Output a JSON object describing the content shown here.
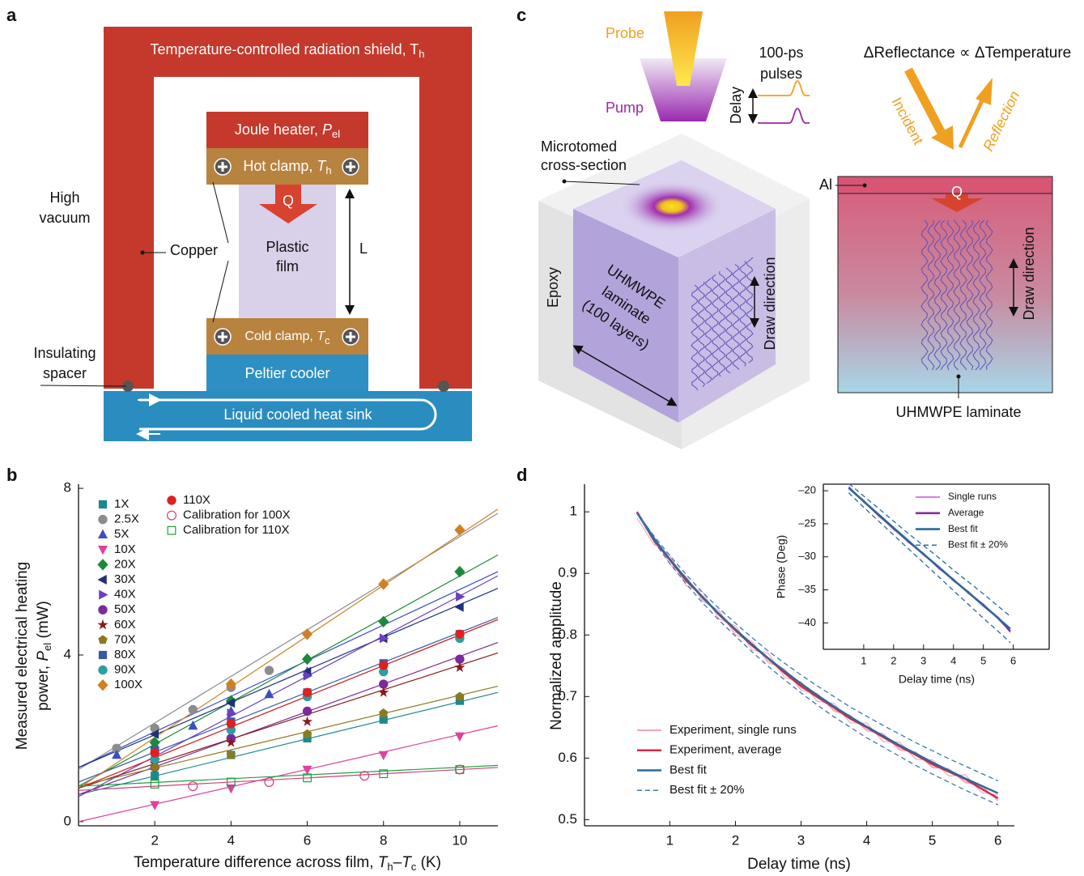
{
  "panel_labels": [
    "a",
    "b",
    "c",
    "d"
  ],
  "diagram_a": {
    "shield": [
      "Temperature-controlled radiation shield, T",
      "h"
    ],
    "heater": [
      "Joule heater, ",
      "P",
      "el"
    ],
    "hot_clamp": [
      "Hot clamp, ",
      "T",
      "h"
    ],
    "q": "Q",
    "film": [
      "Plastic",
      "film"
    ],
    "length": "L",
    "cold_clamp": [
      "Cold clamp, ",
      "T",
      "c"
    ],
    "peltier": "Peltier cooler",
    "heat_sink": "Liquid cooled heat sink",
    "vacuum": [
      "High",
      "vacuum"
    ],
    "copper": "Copper",
    "spacer": [
      "Insulating",
      "spacer"
    ]
  },
  "diagram_c": {
    "probe": "Probe",
    "pump": "Pump",
    "pulses": [
      "100-ps",
      "pulses"
    ],
    "delay": "Delay",
    "cross_section": [
      "Microtomed",
      "cross-section"
    ],
    "epoxy": "Epoxy",
    "laminate": [
      "UHMWPE",
      "laminate",
      "(100 layers)"
    ],
    "draw_direction": "Draw direction",
    "relation": "ΔReflectance ∝  ΔTemperature",
    "incident": "Incident",
    "reflection": "Reflection",
    "al": "Al",
    "q": "Q",
    "draw_direction_2": "Draw direction",
    "laminate_2": "UHMWPE laminate"
  },
  "chart_data": [
    {
      "type": "scatter",
      "xlabel": [
        "Temperature difference across film, ",
        "T",
        "h",
        "–",
        "T",
        "c",
        " (K)"
      ],
      "ylabel": [
        "Measured electrical heating",
        "power, ",
        "P",
        "el",
        " (mW)"
      ],
      "xlim": [
        0,
        11
      ],
      "ylim": [
        -0.1,
        8.1
      ],
      "xticks": [
        2,
        4,
        6,
        8,
        10
      ],
      "yticks": [
        0,
        4,
        8
      ],
      "legend": "upper left",
      "series": [
        {
          "name": "1X",
          "color": "#1b8a8c",
          "marker": "square",
          "x": [
            2,
            4,
            6,
            8,
            10
          ],
          "values": [
            1.1,
            1.6,
            2.0,
            2.45,
            2.9
          ],
          "fit": [
            0.65,
            3.1
          ]
        },
        {
          "name": "2.5X",
          "color": "#8c8c8c",
          "marker": "circle",
          "x": [
            1,
            2,
            3,
            4,
            5
          ],
          "values": [
            1.76,
            2.24,
            2.69,
            3.22,
            3.63
          ],
          "fit": [
            1.25,
            7.4
          ]
        },
        {
          "name": "5X",
          "color": "#3b4fc4",
          "marker": "triangle-up",
          "x": [
            1,
            2,
            3,
            4,
            5,
            6
          ],
          "values": [
            1.6,
            1.85,
            2.3,
            2.65,
            3.06,
            3.6
          ],
          "fit": [
            1.3,
            6.0
          ]
        },
        {
          "name": "10X",
          "color": "#e040a0",
          "marker": "triangle-down",
          "x": [
            2,
            4,
            6,
            8,
            10
          ],
          "values": [
            0.4,
            0.8,
            1.25,
            1.6,
            2.05
          ],
          "fit": [
            0,
            2.3
          ]
        },
        {
          "name": "20X",
          "color": "#1b8a3a",
          "marker": "diamond",
          "x": [
            2,
            4,
            6,
            8,
            10
          ],
          "values": [
            1.9,
            2.9,
            3.9,
            4.8,
            6.0
          ],
          "fit": [
            0.85,
            6.4
          ]
        },
        {
          "name": "30X",
          "color": "#20307a",
          "marker": "triangle-left",
          "x": [
            2,
            4,
            6,
            8,
            10
          ],
          "values": [
            2.1,
            2.85,
            3.6,
            4.4,
            5.15
          ],
          "fit": [
            1.3,
            5.6
          ]
        },
        {
          "name": "40X",
          "color": "#6a40c0",
          "marker": "triangle-right",
          "x": [
            2,
            4,
            6,
            8,
            10
          ],
          "values": [
            1.5,
            2.6,
            3.5,
            4.4,
            5.4
          ],
          "fit": [
            0.6,
            5.9
          ]
        },
        {
          "name": "50X",
          "color": "#7a2a9a",
          "marker": "circle",
          "x": [
            2,
            4,
            6,
            8,
            10
          ],
          "values": [
            1.3,
            2.0,
            2.65,
            3.3,
            3.9
          ],
          "fit": [
            0.65,
            4.3
          ]
        },
        {
          "name": "60X",
          "color": "#8a1a1a",
          "marker": "star",
          "x": [
            2,
            4,
            6,
            8,
            10
          ],
          "values": [
            1.4,
            1.9,
            2.4,
            3.1,
            3.7
          ],
          "fit": [
            0.8,
            4.05
          ]
        },
        {
          "name": "70X",
          "color": "#8a7a20",
          "marker": "pentagon",
          "x": [
            2,
            4,
            6,
            8,
            10
          ],
          "values": [
            1.3,
            1.6,
            2.1,
            2.6,
            3.0
          ],
          "fit": [
            0.85,
            3.25
          ]
        },
        {
          "name": "80X",
          "color": "#3a5aa0",
          "marker": "square",
          "x": [
            2,
            4,
            6,
            8,
            10
          ],
          "values": [
            1.7,
            2.4,
            3.1,
            3.8,
            4.5
          ],
          "fit": [
            0.95,
            4.9
          ]
        },
        {
          "name": "90X",
          "color": "#2aa0a0",
          "marker": "circle",
          "x": [
            2,
            4,
            6,
            8,
            10
          ],
          "values": [
            1.5,
            2.2,
            3.0,
            3.6,
            4.4
          ],
          "fit": [
            0.8,
            4.85
          ]
        },
        {
          "name": "100X",
          "color": "#d08020",
          "marker": "diamond",
          "x": [
            4,
            6,
            8,
            10
          ],
          "values": [
            3.3,
            4.5,
            5.7,
            7.0
          ],
          "fit": [
            0.8,
            7.5
          ]
        },
        {
          "name": "110X",
          "color": "#e02020",
          "marker": "circle",
          "x": [
            2,
            4,
            6,
            8,
            10
          ],
          "values": [
            1.65,
            2.35,
            3.1,
            3.75,
            4.5
          ],
          "fit": [
            0.8,
            4.85
          ]
        },
        {
          "name": "Calibration for 100X",
          "color": "#d0407a",
          "marker": "open-circle",
          "x": [
            3,
            5,
            7.5,
            10
          ],
          "values": [
            0.85,
            0.95,
            1.1,
            1.25
          ],
          "fit": [
            0.75,
            1.3
          ]
        },
        {
          "name": "Calibration for 110X",
          "color": "#20a040",
          "marker": "open-square",
          "x": [
            2,
            4,
            6,
            8,
            10
          ],
          "values": [
            0.9,
            0.95,
            1.05,
            1.15,
            1.25
          ],
          "fit": [
            0.85,
            1.35
          ]
        }
      ]
    },
    {
      "type": "line",
      "xlabel": [
        "Delay time (ns)"
      ],
      "ylabel": [
        "Normalized amplitude"
      ],
      "xlim": [
        -0.3,
        6.25
      ],
      "ylim": [
        0.49,
        1.045
      ],
      "xticks": [
        1,
        2,
        3,
        4,
        5,
        6
      ],
      "yticks": [
        0.5,
        0.6,
        0.7,
        0.8,
        0.9,
        1
      ],
      "legend": "lower left",
      "x": [
        0.5,
        0.75,
        1,
        1.25,
        1.5,
        1.75,
        2,
        2.25,
        2.5,
        2.75,
        3,
        3.25,
        3.5,
        3.75,
        4,
        4.25,
        4.5,
        4.75,
        5,
        5.25,
        5.5,
        5.75,
        6
      ],
      "series": [
        {
          "name": "Experiment, single runs",
          "color": "#f4a3b3",
          "runs": [
            [
              1.0,
              0.962,
              0.915,
              0.895,
              0.855,
              0.84,
              0.8,
              0.79,
              0.755,
              0.745,
              0.71,
              0.705,
              0.676,
              0.67,
              0.644,
              0.64,
              0.613,
              0.61,
              0.584,
              0.583,
              0.56,
              0.556,
              0.53
            ],
            [
              0.99,
              0.948,
              0.93,
              0.88,
              0.87,
              0.826,
              0.815,
              0.776,
              0.77,
              0.731,
              0.724,
              0.692,
              0.689,
              0.657,
              0.657,
              0.627,
              0.626,
              0.598,
              0.597,
              0.571,
              0.573,
              0.544,
              0.54
            ],
            [
              1.0,
              0.958,
              0.925,
              0.892,
              0.858,
              0.836,
              0.805,
              0.786,
              0.758,
              0.741,
              0.714,
              0.703,
              0.678,
              0.668,
              0.646,
              0.638,
              0.615,
              0.609,
              0.586,
              0.582,
              0.562,
              0.553,
              0.532
            ]
          ]
        },
        {
          "name": "Experiment, average",
          "color": "#d42a4a",
          "values": [
            1.0,
            0.955,
            0.922,
            0.888,
            0.862,
            0.833,
            0.808,
            0.783,
            0.762,
            0.738,
            0.717,
            0.699,
            0.682,
            0.664,
            0.65,
            0.634,
            0.619,
            0.605,
            0.59,
            0.578,
            0.566,
            0.55,
            0.535
          ]
        },
        {
          "name": "Best fit",
          "color": "#2a6a9a",
          "values": [
            0.998,
            0.958,
            0.923,
            0.891,
            0.861,
            0.834,
            0.809,
            0.785,
            0.762,
            0.741,
            0.721,
            0.702,
            0.684,
            0.667,
            0.651,
            0.636,
            0.621,
            0.607,
            0.593,
            0.58,
            0.567,
            0.555,
            0.543
          ]
        },
        {
          "name": "Best fit ± 20%",
          "color": "#3a7ab0",
          "dash": true,
          "values": [
            0.998,
            0.962,
            0.929,
            0.898,
            0.869,
            0.843,
            0.819,
            0.796,
            0.774,
            0.754,
            0.735,
            0.717,
            0.7,
            0.683,
            0.668,
            0.653,
            0.639,
            0.625,
            0.612,
            0.599,
            0.587,
            0.575,
            0.563
          ],
          "lower_values": [
            0.998,
            0.953,
            0.916,
            0.883,
            0.852,
            0.824,
            0.798,
            0.773,
            0.749,
            0.727,
            0.706,
            0.686,
            0.667,
            0.65,
            0.633,
            0.618,
            0.603,
            0.588,
            0.574,
            0.561,
            0.548,
            0.536,
            0.524
          ]
        }
      ]
    },
    {
      "type": "line",
      "xlabel": [
        "Delay time (ns)"
      ],
      "ylabel": [
        "Phase (Deg)"
      ],
      "xlim": [
        -0.35,
        7.2
      ],
      "ylim": [
        -44,
        -19
      ],
      "xticks": [
        1,
        2,
        3,
        4,
        5,
        6
      ],
      "yticks": [
        {
          "value": -40,
          "label": "–40"
        },
        {
          "value": -35,
          "label": "–35"
        },
        {
          "value": -30,
          "label": "–30"
        },
        {
          "value": -25,
          "label": "–25"
        },
        {
          "value": -20,
          "label": "–20"
        }
      ],
      "legend": "upper right",
      "x": [
        0.5,
        1,
        1.5,
        2,
        2.5,
        3,
        3.5,
        4,
        4.5,
        5,
        5.5,
        5.9
      ],
      "series": [
        {
          "name": "Single runs",
          "color": "#d482e0",
          "runs": [
            [
              -19.3,
              -21.8,
              -23.5,
              -25.9,
              -27.5,
              -29.8,
              -31.4,
              -33.7,
              -35.2,
              -37.5,
              -39.1,
              -41.5
            ],
            [
              -19.7,
              -21.4,
              -23.9,
              -25.5,
              -27.9,
              -29.4,
              -31.8,
              -33.3,
              -35.6,
              -37.1,
              -39.5,
              -41.1
            ]
          ]
        },
        {
          "name": "Average",
          "color": "#8a2aa0",
          "values": [
            -19.5,
            -21.6,
            -23.7,
            -25.7,
            -27.7,
            -29.6,
            -31.6,
            -33.5,
            -35.4,
            -37.3,
            -39.3,
            -41.3
          ]
        },
        {
          "name": "Best fit",
          "color": "#2a6a9a",
          "values": [
            -19.6,
            -21.6,
            -23.6,
            -25.6,
            -27.6,
            -29.6,
            -31.5,
            -33.5,
            -35.4,
            -37.4,
            -39.3,
            -40.9
          ]
        },
        {
          "name": "Best fit ± 20%",
          "color": "#2a6a9a",
          "dash": true,
          "values": [
            -18.9,
            -20.8,
            -22.7,
            -24.6,
            -26.5,
            -28.3,
            -30.1,
            -32.0,
            -33.8,
            -35.6,
            -37.5,
            -39.0
          ],
          "lower_values": [
            -20.3,
            -22.5,
            -24.6,
            -26.7,
            -28.8,
            -30.9,
            -33.0,
            -35.1,
            -37.2,
            -39.3,
            -41.3,
            -43.0
          ]
        }
      ]
    }
  ]
}
